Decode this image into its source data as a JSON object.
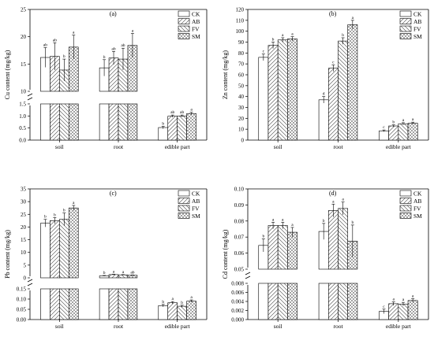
{
  "figure": {
    "background": "#ffffff"
  },
  "chart_data": [
    {
      "panel": "(a)",
      "type": "bar",
      "categories": [
        "soil",
        "root",
        "edible part"
      ],
      "ylabel": "Cu content (mg/kg)",
      "axis_break": true,
      "ylim_lower": [
        0,
        1.5
      ],
      "yticks_lower": [
        "0.0",
        "0.5",
        "1.0",
        "1.5"
      ],
      "ylim_upper": [
        10,
        25
      ],
      "yticks_upper": [
        "10",
        "15",
        "20",
        "25"
      ],
      "legend": [
        "CK",
        "AB",
        "FV",
        "SM"
      ],
      "legend_position": "top-right",
      "series": [
        {
          "name": "CK",
          "values": [
            16.2,
            14.3,
            0.52
          ],
          "errors": [
            1.8,
            1.5,
            0.05
          ],
          "letters": [
            "ab",
            "b",
            "b"
          ]
        },
        {
          "name": "AB",
          "values": [
            16.4,
            16.1,
            0.99
          ],
          "errors": [
            2.5,
            1.2,
            0.05
          ],
          "letters": [
            "ab",
            "ab",
            "ab"
          ]
        },
        {
          "name": "FV",
          "values": [
            13.9,
            15.9,
            1.0
          ],
          "errors": [
            2.0,
            2.0,
            0.04
          ],
          "letters": [
            "b",
            "ab",
            "ab"
          ]
        },
        {
          "name": "SM",
          "values": [
            18.1,
            18.4,
            1.1
          ],
          "errors": [
            2.2,
            2.2,
            0.05
          ],
          "letters": [
            "a",
            "a",
            "a"
          ]
        }
      ]
    },
    {
      "panel": "(b)",
      "type": "bar",
      "categories": [
        "soil",
        "root",
        "edible part"
      ],
      "ylabel": "Zn content (mg/kg)",
      "axis_break": false,
      "ylim": [
        0,
        120
      ],
      "yticks": [
        "0",
        "10",
        "20",
        "30",
        "40",
        "50",
        "60",
        "70",
        "80",
        "90",
        "100",
        "110",
        "120"
      ],
      "legend": [
        "CK",
        "AB",
        "FV",
        "SM"
      ],
      "legend_position": "top-right",
      "series": [
        {
          "name": "CK",
          "values": [
            76,
            37,
            8.5
          ],
          "errors": [
            3,
            3,
            0.8
          ],
          "letters": [
            "c",
            "d",
            "c"
          ]
        },
        {
          "name": "AB",
          "values": [
            87,
            66,
            13
          ],
          "errors": [
            3,
            3,
            1
          ],
          "letters": [
            "b",
            "c",
            "b"
          ]
        },
        {
          "name": "FV",
          "values": [
            92,
            91,
            15
          ],
          "errors": [
            2,
            3,
            1
          ],
          "letters": [
            "a",
            "b",
            "a"
          ]
        },
        {
          "name": "SM",
          "values": [
            93,
            106,
            15.5
          ],
          "errors": [
            2,
            4,
            1
          ],
          "letters": [
            "a",
            "a",
            "a"
          ]
        }
      ]
    },
    {
      "panel": "(c)",
      "type": "bar",
      "categories": [
        "soil",
        "root",
        "edible part"
      ],
      "ylabel": "Pb content (mg/kg)",
      "axis_break": true,
      "ylim_lower": [
        0,
        0.15
      ],
      "yticks_lower": [
        "0.00",
        "0.05",
        "0.10",
        "0.15"
      ],
      "ylim_upper": [
        0,
        35
      ],
      "yticks_upper": [
        "0",
        "5",
        "10",
        "15",
        "20",
        "25",
        "30",
        "35"
      ],
      "legend": [
        "CK",
        "AB",
        "FV",
        "SM"
      ],
      "legend_position": "top-right",
      "upper_categories": [
        0,
        1
      ],
      "lower_categories": [
        2
      ],
      "series": [
        {
          "name": "CK",
          "values": [
            21.5,
            0.78,
            0.068
          ],
          "errors": [
            1.5,
            0.15,
            0.006
          ],
          "letters": [
            "b",
            "b",
            "b"
          ]
        },
        {
          "name": "AB",
          "values": [
            22.5,
            1.27,
            0.082
          ],
          "errors": [
            1.2,
            0.15,
            0.006
          ],
          "letters": [
            "b",
            "a",
            "a"
          ]
        },
        {
          "name": "FV",
          "values": [
            23.0,
            1.17,
            0.065
          ],
          "errors": [
            2.5,
            0.12,
            0.005
          ],
          "letters": [
            "b",
            "a",
            "b"
          ]
        },
        {
          "name": "SM",
          "values": [
            27.5,
            0.99,
            0.09
          ],
          "errors": [
            1.0,
            0.12,
            0.006
          ],
          "letters": [
            "a",
            "ab",
            "a"
          ]
        }
      ]
    },
    {
      "panel": "(d)",
      "type": "bar",
      "categories": [
        "soil",
        "root",
        "edible part"
      ],
      "ylabel": "Cd content (mg/kg)",
      "axis_break": true,
      "ylim_lower": [
        0,
        0.008
      ],
      "yticks_lower": [
        "0.000",
        "0.002",
        "0.004",
        "0.006",
        "0.008"
      ],
      "ylim_upper": [
        0.05,
        0.1
      ],
      "yticks_upper": [
        "0.05",
        "0.06",
        "0.07",
        "0.08",
        "0.09",
        "0.10"
      ],
      "legend": [
        "CK",
        "AB",
        "FV",
        "SM"
      ],
      "legend_position": "top-right",
      "series": [
        {
          "name": "CK",
          "values": [
            0.0648,
            0.0735,
            0.0018
          ],
          "errors": [
            0.004,
            0.005,
            0.0005
          ],
          "letters": [
            "b",
            "b",
            "c"
          ]
        },
        {
          "name": "AB",
          "values": [
            0.0772,
            0.0865,
            0.0035
          ],
          "errors": [
            0.002,
            0.004,
            0.0004
          ],
          "letters": [
            "a",
            "a",
            "a"
          ]
        },
        {
          "name": "FV",
          "values": [
            0.0772,
            0.0878,
            0.0034
          ],
          "errors": [
            0.002,
            0.004,
            0.0004
          ],
          "letters": [
            "a",
            "a",
            "a"
          ]
        },
        {
          "name": "SM",
          "values": [
            0.073,
            0.0675,
            0.0042
          ],
          "errors": [
            0.003,
            0.01,
            0.0004
          ],
          "letters": [
            "a",
            "b",
            "a"
          ]
        }
      ]
    }
  ]
}
